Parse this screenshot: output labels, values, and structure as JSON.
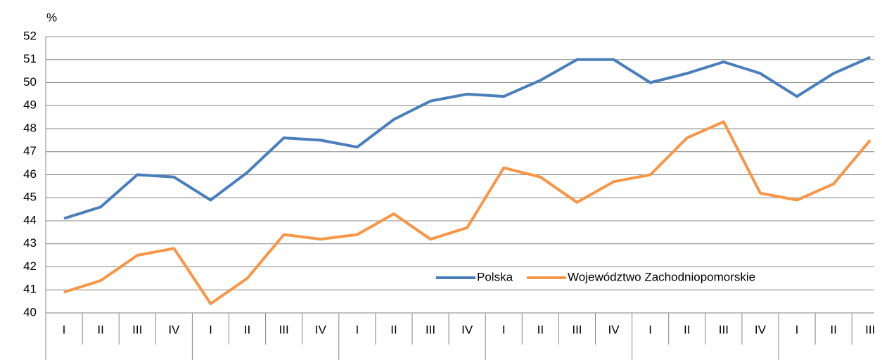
{
  "chart_data": {
    "type": "line",
    "y_axis_label": "%",
    "categories": [
      "I",
      "II",
      "III",
      "IV",
      "I",
      "II",
      "III",
      "IV",
      "I",
      "II",
      "III",
      "IV",
      "I",
      "II",
      "III",
      "IV",
      "I",
      "II",
      "III",
      "IV",
      "I",
      "II",
      "III"
    ],
    "series": [
      {
        "name": "Polska",
        "color": "#4a7ebb",
        "values": [
          44.1,
          44.6,
          46.0,
          45.9,
          44.9,
          46.1,
          47.6,
          47.5,
          47.2,
          48.4,
          49.2,
          49.5,
          49.4,
          50.1,
          51.0,
          51.0,
          50.0,
          50.4,
          50.9,
          50.4,
          49.4,
          50.4,
          51.1
        ]
      },
      {
        "name": "Województwo Zachodniopomorskie",
        "color": "#f79646",
        "values": [
          40.9,
          41.4,
          42.5,
          42.8,
          40.4,
          41.5,
          43.4,
          43.2,
          43.4,
          44.3,
          43.2,
          43.7,
          46.3,
          45.9,
          44.8,
          45.7,
          46.0,
          47.6,
          48.3,
          45.2,
          44.9,
          45.6,
          47.5
        ]
      }
    ],
    "ylim": [
      40,
      52
    ],
    "yticks": [
      40,
      41,
      42,
      43,
      44,
      45,
      46,
      47,
      48,
      49,
      50,
      51,
      52
    ],
    "grid": true,
    "legend": "lower-right"
  }
}
